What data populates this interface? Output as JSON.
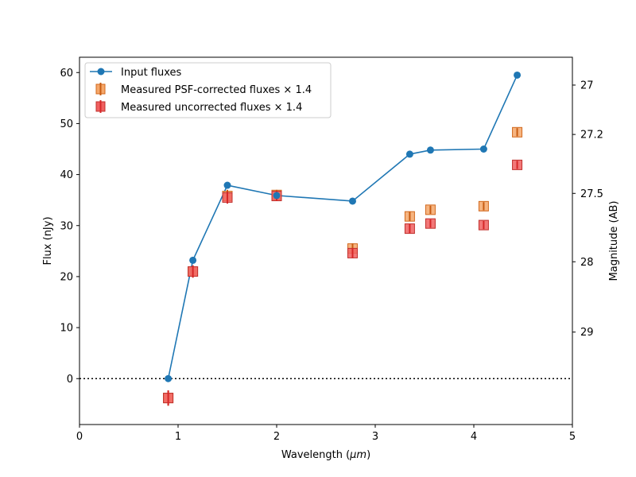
{
  "chart_data": {
    "type": "scatter",
    "xlabel_main": "Wavelength (",
    "xlabel_unit": "μm",
    "xlabel_end": ")",
    "ylabel": "Flux (nJy)",
    "ylabel_right": "Magnitude (AB)",
    "xlim": [
      0,
      5
    ],
    "ylim": [
      -9,
      63
    ],
    "x_ticks": [
      0,
      1,
      2,
      3,
      4,
      5
    ],
    "x_tick_labels": [
      "0",
      "1",
      "2",
      "3",
      "4",
      "5"
    ],
    "y_ticks": [
      0,
      10,
      20,
      30,
      40,
      50,
      60
    ],
    "y_tick_labels": [
      "0",
      "10",
      "20",
      "30",
      "40",
      "50",
      "60"
    ],
    "right_ticks": [
      {
        "label": "27",
        "mag": 27.0
      },
      {
        "label": "27.2",
        "mag": 27.2
      },
      {
        "label": "27.5",
        "mag": 27.5
      },
      {
        "label": "28",
        "mag": 28.0
      },
      {
        "label": "29",
        "mag": 29.0
      }
    ],
    "zero_line": 0,
    "legend_position": "upper-left",
    "colors": {
      "input": "#1f77b4",
      "corrected_fill": "#f5a76a",
      "corrected_edge": "#d2691e",
      "corrected_err": "#c75c12",
      "uncorrected_fill": "#f06060",
      "uncorrected_edge": "#c0302c",
      "uncorrected_err": "#d62728"
    },
    "series": [
      {
        "name": "Input fluxes",
        "kind": "line-marker",
        "x": [
          0.9,
          1.15,
          1.5,
          2.0,
          2.77,
          3.35,
          3.56,
          4.1,
          4.44
        ],
        "y": [
          0.0,
          23.2,
          37.9,
          35.9,
          34.8,
          44.0,
          44.8,
          45.0,
          59.5
        ]
      },
      {
        "name": "Measured PSF-corrected fluxes × 1.4",
        "kind": "square-error",
        "x": [
          0.9,
          1.15,
          1.5,
          2.0,
          2.77,
          3.35,
          3.56,
          4.1,
          4.44
        ],
        "y": [
          -3.8,
          21.0,
          35.8,
          36.0,
          25.5,
          31.8,
          33.1,
          33.8,
          48.3
        ],
        "err": [
          1.5,
          1.2,
          1.2,
          1.0,
          1.0,
          0.9,
          0.8,
          0.8,
          0.8
        ]
      },
      {
        "name": "Measured uncorrected fluxes × 1.4",
        "kind": "square-error",
        "x": [
          0.9,
          1.15,
          1.5,
          2.0,
          2.77,
          3.35,
          3.56,
          4.1,
          4.44
        ],
        "y": [
          -3.8,
          21.0,
          35.5,
          35.8,
          24.6,
          29.4,
          30.4,
          30.1,
          41.9
        ],
        "err": [
          1.5,
          1.2,
          1.2,
          1.0,
          1.0,
          0.9,
          0.8,
          0.8,
          0.8
        ]
      }
    ]
  }
}
